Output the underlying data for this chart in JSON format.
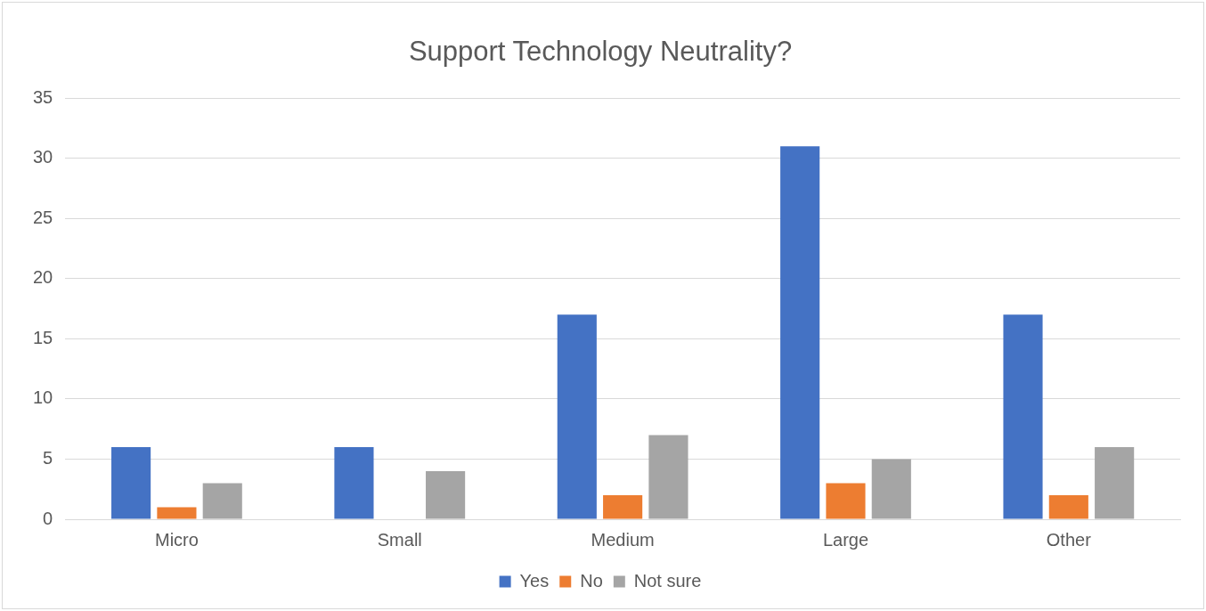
{
  "chart_data": {
    "type": "bar",
    "title": "Support Technology Neutrality?",
    "categories": [
      "Micro",
      "Small",
      "Medium",
      "Large",
      "Other"
    ],
    "series": [
      {
        "name": "Yes",
        "color": "#4472c4",
        "values": [
          6,
          6,
          17,
          31,
          17
        ]
      },
      {
        "name": "No",
        "color": "#ed7d31",
        "values": [
          1,
          0,
          2,
          3,
          2
        ]
      },
      {
        "name": "Not sure",
        "color": "#a5a5a5",
        "values": [
          3,
          4,
          7,
          5,
          6
        ]
      }
    ],
    "ylim": [
      0,
      35
    ],
    "yticks": [
      0,
      5,
      10,
      15,
      20,
      25,
      30,
      35
    ],
    "grid": "y",
    "legend": "bottom"
  }
}
